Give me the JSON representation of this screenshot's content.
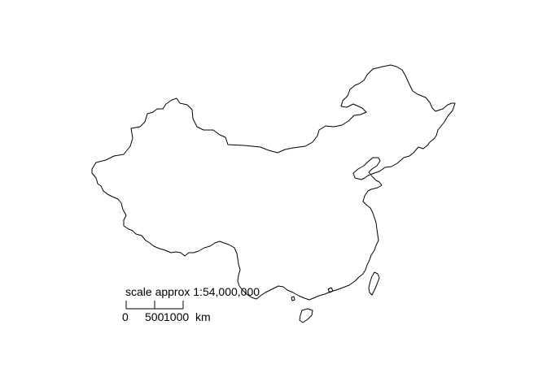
{
  "map": {
    "scale_caption": "scale approx 1:54,000,000",
    "scale_ticks": [
      "0",
      "500",
      "1000"
    ],
    "scale_unit": "km",
    "line_color": "#000000",
    "background_color": "#ffffff"
  }
}
